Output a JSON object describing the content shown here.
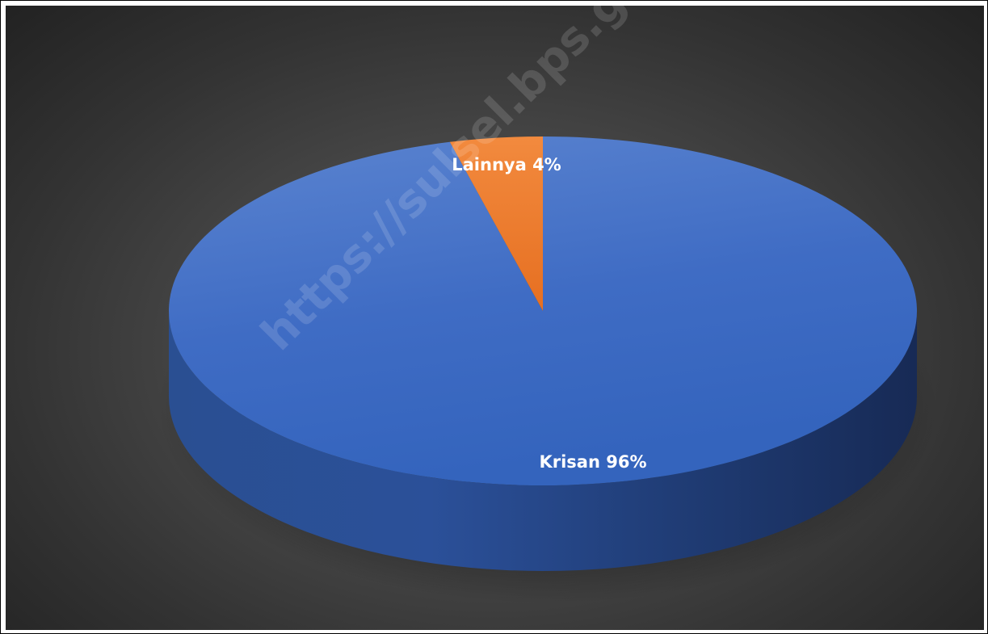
{
  "watermark": "https://sulsel.bps.go.id",
  "colors": {
    "background": "#404040",
    "krisan": "#4472C4",
    "lainnya": "#ED7D31",
    "label_text": "#FFFFFF"
  },
  "chart_data": {
    "type": "pie",
    "style": "3d",
    "title": "",
    "categories": [
      "Krisan",
      "Lainnya"
    ],
    "values": [
      96,
      4
    ],
    "unit": "%",
    "labels": [
      "Krisan 96%",
      "Lainnya 4%"
    ],
    "legend": "none"
  }
}
